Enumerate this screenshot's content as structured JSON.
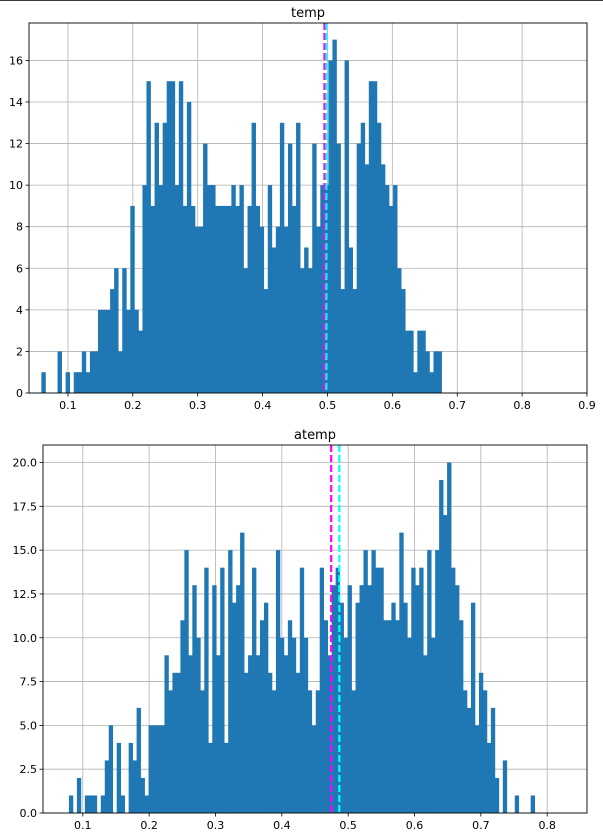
{
  "chart_data": [
    {
      "type": "histogram",
      "title": "temp",
      "xlabel": "",
      "ylabel": "",
      "xlim": [
        0.04,
        0.9
      ],
      "ylim": [
        0,
        17.8
      ],
      "xticks": [
        0.1,
        0.2,
        0.3,
        0.4,
        0.5,
        0.6,
        0.7,
        0.8,
        0.9
      ],
      "xtick_labels": [
        "0.1",
        "0.2",
        "0.3",
        "0.4",
        "0.5",
        "0.6",
        "0.7",
        "0.8",
        "0.9"
      ],
      "yticks": [
        0,
        2,
        4,
        6,
        8,
        10,
        12,
        14,
        16
      ],
      "ytick_labels": [
        "0",
        "2",
        "4",
        "6",
        "8",
        "10",
        "12",
        "14",
        "16"
      ],
      "grid": true,
      "bin_start": 0.0591,
      "bin_width": 0.00623,
      "counts": [
        1,
        0,
        0,
        0,
        2,
        0,
        1,
        0,
        1,
        1,
        2,
        1,
        2,
        2,
        4,
        4,
        4,
        5,
        6,
        2,
        6,
        4,
        9,
        4,
        3,
        10,
        15,
        9,
        13,
        10,
        13,
        15,
        15,
        10,
        15,
        9,
        14,
        9,
        8,
        8,
        12,
        10,
        10,
        9,
        9,
        9,
        9,
        10,
        9,
        10,
        6,
        9,
        13,
        9,
        8,
        5,
        10,
        7,
        8,
        13,
        8,
        12,
        9,
        13,
        6,
        7,
        6,
        12,
        8,
        10,
        10,
        16,
        17,
        12,
        5,
        16,
        7,
        5,
        12,
        13,
        11,
        15,
        15,
        13,
        11,
        10,
        9,
        10,
        6,
        5,
        3,
        3,
        1,
        3,
        3,
        2,
        1,
        2,
        2
      ],
      "mean": 0.4954,
      "median": 0.4983,
      "mean_color": "#ff00ff",
      "median_color": "#00ffff",
      "bar_color": "#1f77b4"
    },
    {
      "type": "histogram",
      "title": "atemp",
      "xlabel": "",
      "ylabel": "",
      "xlim": [
        0.04,
        0.86
      ],
      "ylim": [
        0,
        21
      ],
      "xticks": [
        0.1,
        0.2,
        0.3,
        0.4,
        0.5,
        0.6,
        0.7,
        0.8
      ],
      "xtick_labels": [
        "0.1",
        "0.2",
        "0.3",
        "0.4",
        "0.5",
        "0.6",
        "0.7",
        "0.8"
      ],
      "yticks": [
        0,
        2.5,
        5,
        7.5,
        10,
        12.5,
        15,
        17.5,
        20
      ],
      "ytick_labels": [
        "0.0",
        "2.5",
        "5.0",
        "7.5",
        "10.0",
        "12.5",
        "15.0",
        "17.5",
        "20.0"
      ],
      "grid": true,
      "bin_start": 0.0791,
      "bin_width": 0.006,
      "counts": [
        1,
        0,
        2,
        0,
        1,
        1,
        1,
        0,
        1,
        3,
        5,
        0,
        4,
        1,
        0,
        4,
        3,
        6,
        2,
        1,
        5,
        5,
        5,
        5,
        9,
        7,
        8,
        8,
        11,
        15,
        9,
        13,
        10,
        7,
        14,
        4,
        13,
        9,
        14,
        4,
        15,
        12,
        13,
        16,
        8,
        9,
        14,
        9,
        11,
        12,
        8,
        7,
        15,
        10,
        9,
        11,
        10,
        8,
        14,
        10,
        7,
        5,
        7,
        14,
        11,
        9,
        13,
        14,
        12,
        10,
        13,
        7,
        12,
        13,
        15,
        13,
        15,
        14,
        14,
        11,
        11,
        12,
        11,
        16,
        12,
        10,
        14,
        13,
        14,
        9,
        15,
        10,
        15,
        19,
        17,
        20,
        14,
        13,
        11,
        7,
        6,
        12,
        5,
        8,
        7,
        4,
        6,
        2,
        0,
        3,
        0,
        0,
        1,
        0,
        0,
        0,
        1
      ],
      "mean": 0.4744,
      "median": 0.4867,
      "mean_color": "#ff00ff",
      "median_color": "#00ffff",
      "bar_color": "#1f77b4"
    }
  ]
}
